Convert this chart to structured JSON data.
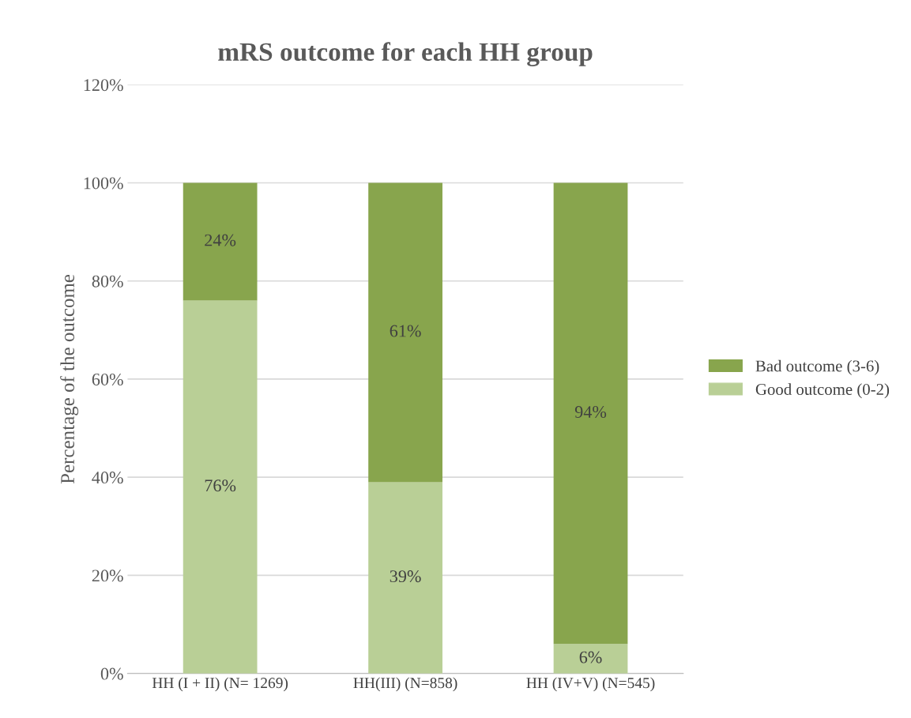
{
  "chart_data": {
    "type": "bar",
    "title": "mRS outcome for each HH group",
    "ylabel": "Percentage of the outcome",
    "categories": [
      "HH (I + II) (N= 1269)",
      "HH(III) (N=858)",
      "HH (IV+V) (N=545)"
    ],
    "stacked": true,
    "series": [
      {
        "name": "Good outcome (0-2)",
        "color": "#b9cf96",
        "values": [
          76,
          39,
          6
        ],
        "value_labels": [
          "76%",
          "39%",
          "6%"
        ]
      },
      {
        "name": "Bad outcome (3-6)",
        "color": "#88a54d",
        "values": [
          24,
          61,
          94
        ],
        "value_labels": [
          "24%",
          "61%",
          "94%"
        ]
      }
    ],
    "ylim": [
      0,
      120
    ],
    "yticks": [
      {
        "value": 0,
        "label": "0%"
      },
      {
        "value": 20,
        "label": "20%"
      },
      {
        "value": 40,
        "label": "40%"
      },
      {
        "value": 60,
        "label": "60%"
      },
      {
        "value": 80,
        "label": "80%"
      },
      {
        "value": 100,
        "label": "100%"
      },
      {
        "value": 120,
        "label": "120%"
      }
    ],
    "grid": "y",
    "legend": "right"
  }
}
